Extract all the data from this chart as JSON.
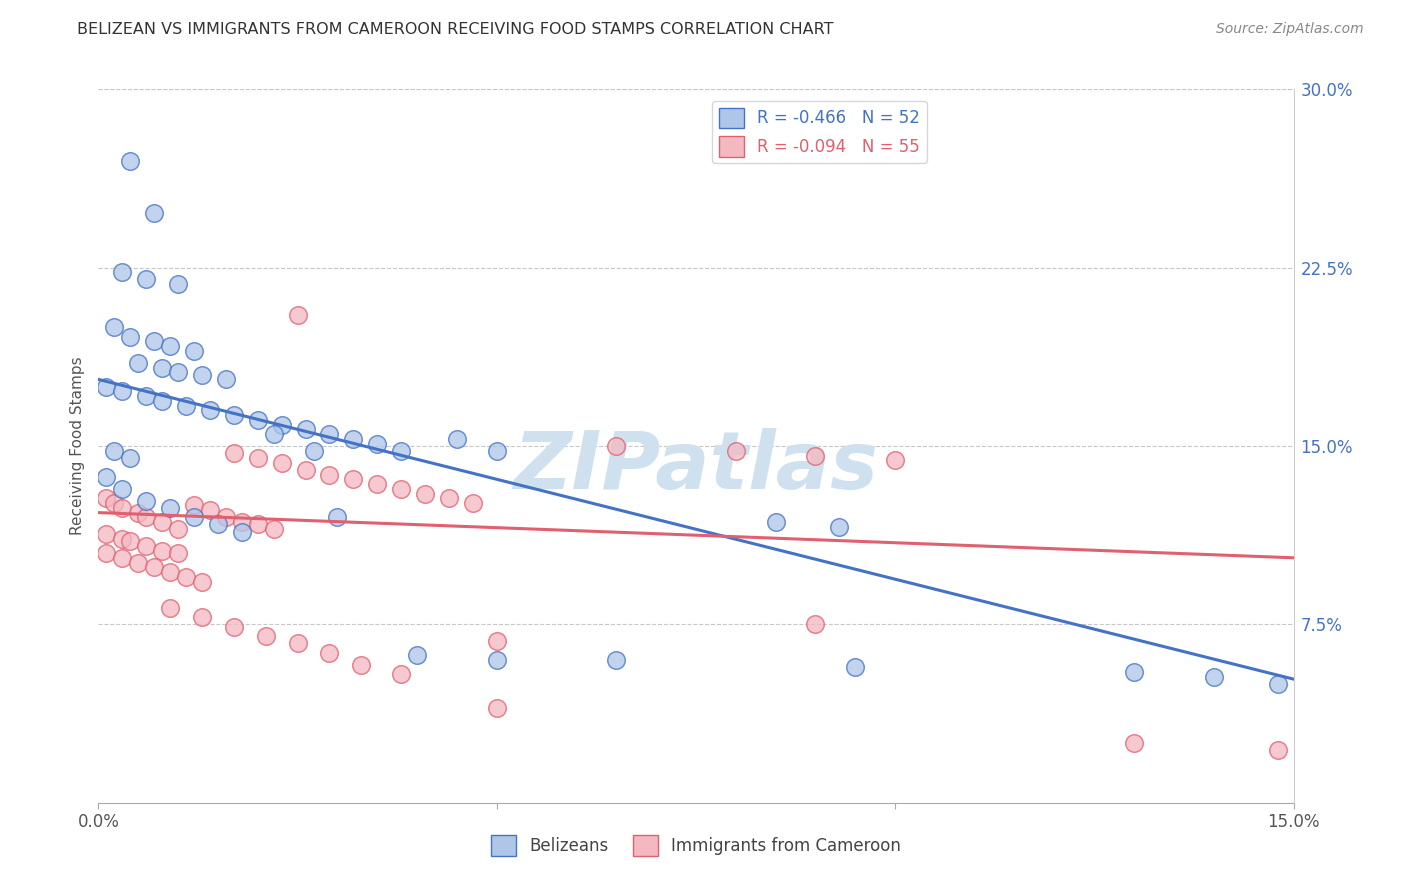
{
  "title": "BELIZEAN VS IMMIGRANTS FROM CAMEROON RECEIVING FOOD STAMPS CORRELATION CHART",
  "source": "Source: ZipAtlas.com",
  "ylabel": "Receiving Food Stamps",
  "xlim": [
    0.0,
    0.15
  ],
  "ylim": [
    0.0,
    0.3
  ],
  "xticks": [
    0.0,
    0.05,
    0.1,
    0.15
  ],
  "xtick_labels": [
    "0.0%",
    "",
    "",
    "15.0%"
  ],
  "yticks_right": [
    0.075,
    0.15,
    0.225,
    0.3
  ],
  "ytick_labels_right": [
    "7.5%",
    "15.0%",
    "22.5%",
    "30.0%"
  ],
  "legend_label1": "R = -0.466   N = 52",
  "legend_label2": "R = -0.094   N = 55",
  "legend_labels_bottom": [
    "Belizeans",
    "Immigrants from Cameroon"
  ],
  "blue_scatter_color": "#aec6e8",
  "blue_edge_color": "#4472c4",
  "pink_scatter_color": "#f4b8c1",
  "pink_edge_color": "#e06070",
  "blue_line_color": "#4472c4",
  "pink_line_color": "#e06070",
  "blue_scatter": [
    [
      0.004,
      0.27
    ],
    [
      0.007,
      0.248
    ],
    [
      0.003,
      0.223
    ],
    [
      0.006,
      0.22
    ],
    [
      0.01,
      0.218
    ],
    [
      0.002,
      0.2
    ],
    [
      0.004,
      0.196
    ],
    [
      0.007,
      0.194
    ],
    [
      0.009,
      0.192
    ],
    [
      0.012,
      0.19
    ],
    [
      0.005,
      0.185
    ],
    [
      0.008,
      0.183
    ],
    [
      0.01,
      0.181
    ],
    [
      0.013,
      0.18
    ],
    [
      0.016,
      0.178
    ],
    [
      0.001,
      0.175
    ],
    [
      0.003,
      0.173
    ],
    [
      0.006,
      0.171
    ],
    [
      0.008,
      0.169
    ],
    [
      0.011,
      0.167
    ],
    [
      0.014,
      0.165
    ],
    [
      0.017,
      0.163
    ],
    [
      0.02,
      0.161
    ],
    [
      0.023,
      0.159
    ],
    [
      0.026,
      0.157
    ],
    [
      0.029,
      0.155
    ],
    [
      0.032,
      0.153
    ],
    [
      0.035,
      0.151
    ],
    [
      0.002,
      0.148
    ],
    [
      0.004,
      0.145
    ],
    [
      0.038,
      0.148
    ],
    [
      0.001,
      0.137
    ],
    [
      0.003,
      0.132
    ],
    [
      0.006,
      0.127
    ],
    [
      0.009,
      0.124
    ],
    [
      0.012,
      0.12
    ],
    [
      0.015,
      0.117
    ],
    [
      0.018,
      0.114
    ],
    [
      0.05,
      0.148
    ],
    [
      0.045,
      0.153
    ],
    [
      0.085,
      0.118
    ],
    [
      0.093,
      0.116
    ],
    [
      0.03,
      0.12
    ],
    [
      0.022,
      0.155
    ],
    [
      0.027,
      0.148
    ],
    [
      0.05,
      0.06
    ],
    [
      0.065,
      0.06
    ],
    [
      0.095,
      0.057
    ],
    [
      0.13,
      0.055
    ],
    [
      0.14,
      0.053
    ],
    [
      0.148,
      0.05
    ],
    [
      0.04,
      0.062
    ]
  ],
  "pink_scatter": [
    [
      0.001,
      0.128
    ],
    [
      0.002,
      0.126
    ],
    [
      0.003,
      0.124
    ],
    [
      0.005,
      0.122
    ],
    [
      0.006,
      0.12
    ],
    [
      0.008,
      0.118
    ],
    [
      0.01,
      0.115
    ],
    [
      0.001,
      0.113
    ],
    [
      0.003,
      0.111
    ],
    [
      0.004,
      0.11
    ],
    [
      0.006,
      0.108
    ],
    [
      0.008,
      0.106
    ],
    [
      0.01,
      0.105
    ],
    [
      0.012,
      0.125
    ],
    [
      0.014,
      0.123
    ],
    [
      0.016,
      0.12
    ],
    [
      0.018,
      0.118
    ],
    [
      0.02,
      0.117
    ],
    [
      0.022,
      0.115
    ],
    [
      0.001,
      0.105
    ],
    [
      0.003,
      0.103
    ],
    [
      0.005,
      0.101
    ],
    [
      0.007,
      0.099
    ],
    [
      0.009,
      0.097
    ],
    [
      0.011,
      0.095
    ],
    [
      0.013,
      0.093
    ],
    [
      0.025,
      0.205
    ],
    [
      0.017,
      0.147
    ],
    [
      0.02,
      0.145
    ],
    [
      0.023,
      0.143
    ],
    [
      0.026,
      0.14
    ],
    [
      0.029,
      0.138
    ],
    [
      0.032,
      0.136
    ],
    [
      0.035,
      0.134
    ],
    [
      0.038,
      0.132
    ],
    [
      0.041,
      0.13
    ],
    [
      0.044,
      0.128
    ],
    [
      0.047,
      0.126
    ],
    [
      0.009,
      0.082
    ],
    [
      0.013,
      0.078
    ],
    [
      0.017,
      0.074
    ],
    [
      0.021,
      0.07
    ],
    [
      0.025,
      0.067
    ],
    [
      0.029,
      0.063
    ],
    [
      0.033,
      0.058
    ],
    [
      0.038,
      0.054
    ],
    [
      0.05,
      0.068
    ],
    [
      0.05,
      0.04
    ],
    [
      0.065,
      0.15
    ],
    [
      0.08,
      0.148
    ],
    [
      0.09,
      0.146
    ],
    [
      0.1,
      0.144
    ],
    [
      0.13,
      0.025
    ],
    [
      0.148,
      0.022
    ],
    [
      0.09,
      0.075
    ]
  ],
  "blue_line_x": [
    0.0,
    0.15
  ],
  "blue_line_y": [
    0.178,
    0.052
  ],
  "pink_line_x": [
    0.0,
    0.15
  ],
  "pink_line_y": [
    0.122,
    0.103
  ],
  "background_color": "#ffffff",
  "grid_color": "#c8c8c8",
  "watermark_text": "ZIPatlas",
  "watermark_fontsize": 58,
  "watermark_color": "#cfe0ef"
}
